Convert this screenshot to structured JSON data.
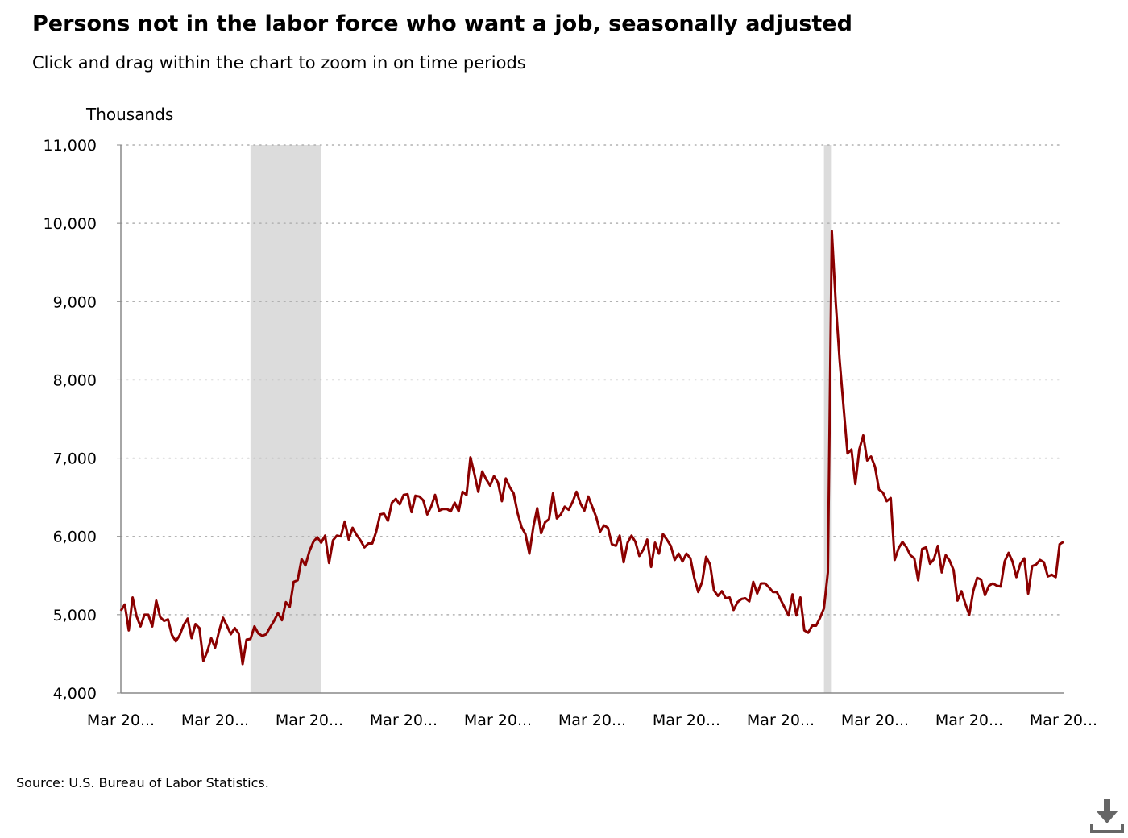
{
  "header": {
    "title": "Persons not in the labor force who want a job, seasonally adjusted",
    "subtitle": "Click and drag within the chart to zoom in on time periods"
  },
  "footer": {
    "source": "Source: U.S. Bureau of Labor Statistics."
  },
  "controls": {
    "download_icon": "download-icon"
  },
  "colors": {
    "line": "#8b0000",
    "recession_band": "#dcdcdc",
    "gridline": "#b0b0b0",
    "axis": "#888888"
  },
  "chart_data": {
    "type": "line",
    "title": "Persons not in the labor force who want a job, seasonally adjusted",
    "ylabel": "Thousands",
    "xlabel": "",
    "ylim": [
      4000,
      11000
    ],
    "yticks": [
      4000,
      5000,
      6000,
      7000,
      8000,
      9000,
      10000,
      11000
    ],
    "ytick_labels": [
      "4,000",
      "5,000",
      "6,000",
      "7,000",
      "8,000",
      "9,000",
      "10,000",
      "11,000"
    ],
    "xlim": [
      "2005-03",
      "2025-03"
    ],
    "xticks": [
      "2005-03",
      "2007-03",
      "2009-03",
      "2011-03",
      "2013-03",
      "2015-03",
      "2017-03",
      "2019-03",
      "2021-03",
      "2023-03",
      "2025-03"
    ],
    "xtick_labels": [
      "Mar 20...",
      "Mar 20...",
      "Mar 20...",
      "Mar 20...",
      "Mar 20...",
      "Mar 20...",
      "Mar 20...",
      "Mar 20...",
      "Mar 20...",
      "Mar 20...",
      "Mar 20..."
    ],
    "grid": "horizontal dotted",
    "legend": "none",
    "recession_bands": [
      {
        "start": "2007-12",
        "end": "2009-06"
      },
      {
        "start": "2020-02",
        "end": "2020-04"
      }
    ],
    "series": [
      {
        "points": [
          [
            "2005-03",
            5050
          ],
          [
            "2005-04",
            5130
          ],
          [
            "2005-05",
            4800
          ],
          [
            "2005-06",
            5220
          ],
          [
            "2005-07",
            4980
          ],
          [
            "2005-08",
            4850
          ],
          [
            "2005-09",
            5000
          ],
          [
            "2005-10",
            5000
          ],
          [
            "2005-11",
            4850
          ],
          [
            "2005-12",
            5180
          ],
          [
            "2006-01",
            4970
          ],
          [
            "2006-02",
            4920
          ],
          [
            "2006-03",
            4940
          ],
          [
            "2006-04",
            4740
          ],
          [
            "2006-05",
            4660
          ],
          [
            "2006-06",
            4740
          ],
          [
            "2006-07",
            4870
          ],
          [
            "2006-08",
            4950
          ],
          [
            "2006-09",
            4700
          ],
          [
            "2006-10",
            4880
          ],
          [
            "2006-11",
            4830
          ],
          [
            "2006-12",
            4410
          ],
          [
            "2007-01",
            4530
          ],
          [
            "2007-02",
            4700
          ],
          [
            "2007-03",
            4580
          ],
          [
            "2007-04",
            4790
          ],
          [
            "2007-05",
            4960
          ],
          [
            "2007-06",
            4860
          ],
          [
            "2007-07",
            4750
          ],
          [
            "2007-08",
            4830
          ],
          [
            "2007-09",
            4760
          ],
          [
            "2007-10",
            4370
          ],
          [
            "2007-11",
            4680
          ],
          [
            "2007-12",
            4690
          ],
          [
            "2008-01",
            4850
          ],
          [
            "2008-02",
            4760
          ],
          [
            "2008-03",
            4730
          ],
          [
            "2008-04",
            4750
          ],
          [
            "2008-05",
            4840
          ],
          [
            "2008-06",
            4920
          ],
          [
            "2008-07",
            5020
          ],
          [
            "2008-08",
            4930
          ],
          [
            "2008-09",
            5160
          ],
          [
            "2008-10",
            5100
          ],
          [
            "2008-11",
            5420
          ],
          [
            "2008-12",
            5440
          ],
          [
            "2009-01",
            5710
          ],
          [
            "2009-02",
            5630
          ],
          [
            "2009-03",
            5810
          ],
          [
            "2009-04",
            5930
          ],
          [
            "2009-05",
            5990
          ],
          [
            "2009-06",
            5920
          ],
          [
            "2009-07",
            6010
          ],
          [
            "2009-08",
            5660
          ],
          [
            "2009-09",
            5950
          ],
          [
            "2009-10",
            6010
          ],
          [
            "2009-11",
            6000
          ],
          [
            "2009-12",
            6190
          ],
          [
            "2010-01",
            5960
          ],
          [
            "2010-02",
            6110
          ],
          [
            "2010-03",
            6020
          ],
          [
            "2010-04",
            5950
          ],
          [
            "2010-05",
            5860
          ],
          [
            "2010-06",
            5910
          ],
          [
            "2010-07",
            5910
          ],
          [
            "2010-08",
            6060
          ],
          [
            "2010-09",
            6280
          ],
          [
            "2010-10",
            6290
          ],
          [
            "2010-11",
            6200
          ],
          [
            "2010-12",
            6430
          ],
          [
            "2011-01",
            6480
          ],
          [
            "2011-02",
            6410
          ],
          [
            "2011-03",
            6530
          ],
          [
            "2011-04",
            6540
          ],
          [
            "2011-05",
            6310
          ],
          [
            "2011-06",
            6520
          ],
          [
            "2011-07",
            6510
          ],
          [
            "2011-08",
            6460
          ],
          [
            "2011-09",
            6280
          ],
          [
            "2011-10",
            6380
          ],
          [
            "2011-11",
            6530
          ],
          [
            "2011-12",
            6330
          ],
          [
            "2012-01",
            6350
          ],
          [
            "2012-02",
            6350
          ],
          [
            "2012-03",
            6320
          ],
          [
            "2012-04",
            6430
          ],
          [
            "2012-05",
            6320
          ],
          [
            "2012-06",
            6570
          ],
          [
            "2012-07",
            6530
          ],
          [
            "2012-08",
            7010
          ],
          [
            "2012-09",
            6800
          ],
          [
            "2012-10",
            6570
          ],
          [
            "2012-11",
            6830
          ],
          [
            "2012-12",
            6730
          ],
          [
            "2013-01",
            6650
          ],
          [
            "2013-02",
            6770
          ],
          [
            "2013-03",
            6690
          ],
          [
            "2013-04",
            6450
          ],
          [
            "2013-05",
            6740
          ],
          [
            "2013-06",
            6630
          ],
          [
            "2013-07",
            6550
          ],
          [
            "2013-08",
            6300
          ],
          [
            "2013-09",
            6120
          ],
          [
            "2013-10",
            6030
          ],
          [
            "2013-11",
            5780
          ],
          [
            "2013-12",
            6120
          ],
          [
            "2014-01",
            6360
          ],
          [
            "2014-02",
            6040
          ],
          [
            "2014-03",
            6180
          ],
          [
            "2014-04",
            6220
          ],
          [
            "2014-05",
            6550
          ],
          [
            "2014-06",
            6230
          ],
          [
            "2014-07",
            6280
          ],
          [
            "2014-08",
            6380
          ],
          [
            "2014-09",
            6340
          ],
          [
            "2014-10",
            6440
          ],
          [
            "2014-11",
            6570
          ],
          [
            "2014-12",
            6420
          ],
          [
            "2015-01",
            6330
          ],
          [
            "2015-02",
            6510
          ],
          [
            "2015-03",
            6380
          ],
          [
            "2015-04",
            6250
          ],
          [
            "2015-05",
            6060
          ],
          [
            "2015-06",
            6140
          ],
          [
            "2015-07",
            6110
          ],
          [
            "2015-08",
            5900
          ],
          [
            "2015-09",
            5880
          ],
          [
            "2015-10",
            6010
          ],
          [
            "2015-11",
            5670
          ],
          [
            "2015-12",
            5920
          ],
          [
            "2016-01",
            6010
          ],
          [
            "2016-02",
            5930
          ],
          [
            "2016-03",
            5750
          ],
          [
            "2016-04",
            5830
          ],
          [
            "2016-05",
            5960
          ],
          [
            "2016-06",
            5610
          ],
          [
            "2016-07",
            5920
          ],
          [
            "2016-08",
            5780
          ],
          [
            "2016-09",
            6030
          ],
          [
            "2016-10",
            5960
          ],
          [
            "2016-11",
            5880
          ],
          [
            "2016-12",
            5700
          ],
          [
            "2017-01",
            5780
          ],
          [
            "2017-02",
            5680
          ],
          [
            "2017-03",
            5780
          ],
          [
            "2017-04",
            5720
          ],
          [
            "2017-05",
            5470
          ],
          [
            "2017-06",
            5290
          ],
          [
            "2017-07",
            5420
          ],
          [
            "2017-08",
            5740
          ],
          [
            "2017-09",
            5640
          ],
          [
            "2017-10",
            5310
          ],
          [
            "2017-11",
            5240
          ],
          [
            "2017-12",
            5300
          ],
          [
            "2018-01",
            5210
          ],
          [
            "2018-02",
            5220
          ],
          [
            "2018-03",
            5060
          ],
          [
            "2018-04",
            5160
          ],
          [
            "2018-05",
            5200
          ],
          [
            "2018-06",
            5210
          ],
          [
            "2018-07",
            5170
          ],
          [
            "2018-08",
            5420
          ],
          [
            "2018-09",
            5270
          ],
          [
            "2018-10",
            5400
          ],
          [
            "2018-11",
            5400
          ],
          [
            "2018-12",
            5350
          ],
          [
            "2019-01",
            5290
          ],
          [
            "2019-02",
            5290
          ],
          [
            "2019-03",
            5190
          ],
          [
            "2019-04",
            5090
          ],
          [
            "2019-05",
            4990
          ],
          [
            "2019-06",
            5260
          ],
          [
            "2019-07",
            4990
          ],
          [
            "2019-08",
            5220
          ],
          [
            "2019-09",
            4800
          ],
          [
            "2019-10",
            4770
          ],
          [
            "2019-11",
            4860
          ],
          [
            "2019-12",
            4860
          ],
          [
            "2020-01",
            4960
          ],
          [
            "2020-02",
            5080
          ],
          [
            "2020-03",
            5540
          ],
          [
            "2020-04",
            9900
          ],
          [
            "2020-05",
            8980
          ],
          [
            "2020-06",
            8250
          ],
          [
            "2020-07",
            7650
          ],
          [
            "2020-08",
            7060
          ],
          [
            "2020-09",
            7110
          ],
          [
            "2020-10",
            6670
          ],
          [
            "2020-11",
            7110
          ],
          [
            "2020-12",
            7290
          ],
          [
            "2021-01",
            6970
          ],
          [
            "2021-02",
            7020
          ],
          [
            "2021-03",
            6890
          ],
          [
            "2021-04",
            6600
          ],
          [
            "2021-05",
            6560
          ],
          [
            "2021-06",
            6450
          ],
          [
            "2021-07",
            6490
          ],
          [
            "2021-08",
            5700
          ],
          [
            "2021-09",
            5850
          ],
          [
            "2021-10",
            5930
          ],
          [
            "2021-11",
            5860
          ],
          [
            "2021-12",
            5760
          ],
          [
            "2022-01",
            5720
          ],
          [
            "2022-02",
            5440
          ],
          [
            "2022-03",
            5840
          ],
          [
            "2022-04",
            5860
          ],
          [
            "2022-05",
            5650
          ],
          [
            "2022-06",
            5710
          ],
          [
            "2022-07",
            5880
          ],
          [
            "2022-08",
            5540
          ],
          [
            "2022-09",
            5760
          ],
          [
            "2022-10",
            5690
          ],
          [
            "2022-11",
            5570
          ],
          [
            "2022-12",
            5180
          ],
          [
            "2023-01",
            5300
          ],
          [
            "2023-02",
            5140
          ],
          [
            "2023-03",
            5000
          ],
          [
            "2023-04",
            5300
          ],
          [
            "2023-05",
            5470
          ],
          [
            "2023-06",
            5450
          ],
          [
            "2023-07",
            5250
          ],
          [
            "2023-08",
            5370
          ],
          [
            "2023-09",
            5400
          ],
          [
            "2023-10",
            5370
          ],
          [
            "2023-11",
            5360
          ],
          [
            "2023-12",
            5680
          ],
          [
            "2024-01",
            5790
          ],
          [
            "2024-02",
            5680
          ],
          [
            "2024-03",
            5480
          ],
          [
            "2024-04",
            5650
          ],
          [
            "2024-05",
            5720
          ],
          [
            "2024-06",
            5270
          ],
          [
            "2024-07",
            5620
          ],
          [
            "2024-08",
            5640
          ],
          [
            "2024-09",
            5700
          ],
          [
            "2024-10",
            5670
          ],
          [
            "2024-11",
            5490
          ],
          [
            "2024-12",
            5510
          ],
          [
            "2025-01",
            5480
          ],
          [
            "2025-02",
            5900
          ],
          [
            "2025-03",
            5930
          ]
        ]
      }
    ]
  }
}
